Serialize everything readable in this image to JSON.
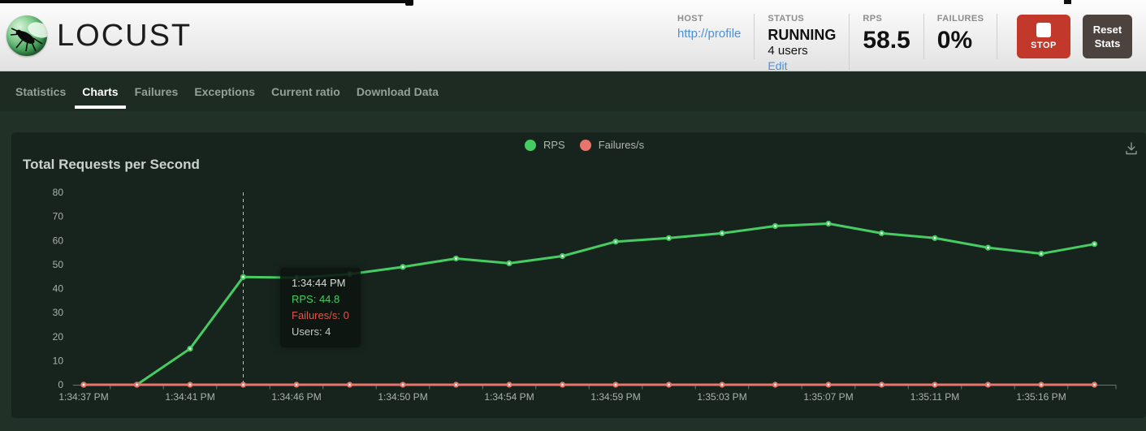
{
  "header": {
    "logo_text": "LOCUST",
    "host": {
      "label": "HOST",
      "url": "http://profile"
    },
    "status": {
      "label": "STATUS",
      "state": "RUNNING",
      "users": "4 users",
      "edit_link": "Edit"
    },
    "rps": {
      "label": "RPS",
      "value": "58.5"
    },
    "failures": {
      "label": "FAILURES",
      "value": "0%"
    },
    "stop_button_label": "STOP",
    "reset_button_label": "Reset Stats"
  },
  "nav": {
    "items": [
      {
        "label": "Statistics",
        "active": false
      },
      {
        "label": "Charts",
        "active": true
      },
      {
        "label": "Failures",
        "active": false
      },
      {
        "label": "Exceptions",
        "active": false
      },
      {
        "label": "Current ratio",
        "active": false
      },
      {
        "label": "Download Data",
        "active": false
      }
    ]
  },
  "chart": {
    "title": "Total Requests per Second",
    "tooltip": {
      "time": "1:34:44 PM",
      "rps_line": "RPS: 44.8",
      "failures_line": "Failures/s: 0",
      "users_line": "Users: 4"
    }
  },
  "chart_data": {
    "type": "line",
    "title": "Total Requests per Second",
    "x_tick_labels": [
      "1:34:37 PM",
      "1:34:41 PM",
      "1:34:46 PM",
      "1:34:50 PM",
      "1:34:54 PM",
      "1:34:59 PM",
      "1:35:03 PM",
      "1:35:07 PM",
      "1:35:11 PM",
      "1:35:16 PM"
    ],
    "y_ticks": [
      0,
      10,
      20,
      30,
      40,
      50,
      60,
      70,
      80
    ],
    "ylim": [
      0,
      80
    ],
    "grid": false,
    "legend_position": "top-center",
    "series": [
      {
        "name": "RPS",
        "color": "#46CC62",
        "values": [
          0,
          0,
          15,
          44.8,
          44.5,
          46,
          49,
          52.5,
          50.5,
          53.5,
          59.5,
          61,
          63,
          66,
          67,
          63,
          61,
          57,
          54.5,
          58.5
        ]
      },
      {
        "name": "Failures/s",
        "color": "#E8756B",
        "values": [
          0,
          0,
          0,
          0,
          0,
          0,
          0,
          0,
          0,
          0,
          0,
          0,
          0,
          0,
          0,
          0,
          0,
          0,
          0,
          0
        ]
      }
    ],
    "hover_point": {
      "series": "RPS",
      "index": 3,
      "time": "1:34:44 PM",
      "rps": 44.8,
      "failures_per_s": 0,
      "users": 4
    }
  },
  "icons": {
    "stop_icon": "white-rounded-square",
    "download_icon": "arrow-down-into-tray",
    "locust_logo_icon": "green-orb-with-locust-insect"
  },
  "colors": {
    "accent_green": "#46CC62",
    "accent_red": "#E8756B",
    "stop_red": "#C2392B",
    "reset_gray": "#4C433F",
    "link_blue": "#4A90D9",
    "nav_bg": "#1E2B22",
    "panel_bg": "#17241D",
    "page_bg": "#223128"
  }
}
